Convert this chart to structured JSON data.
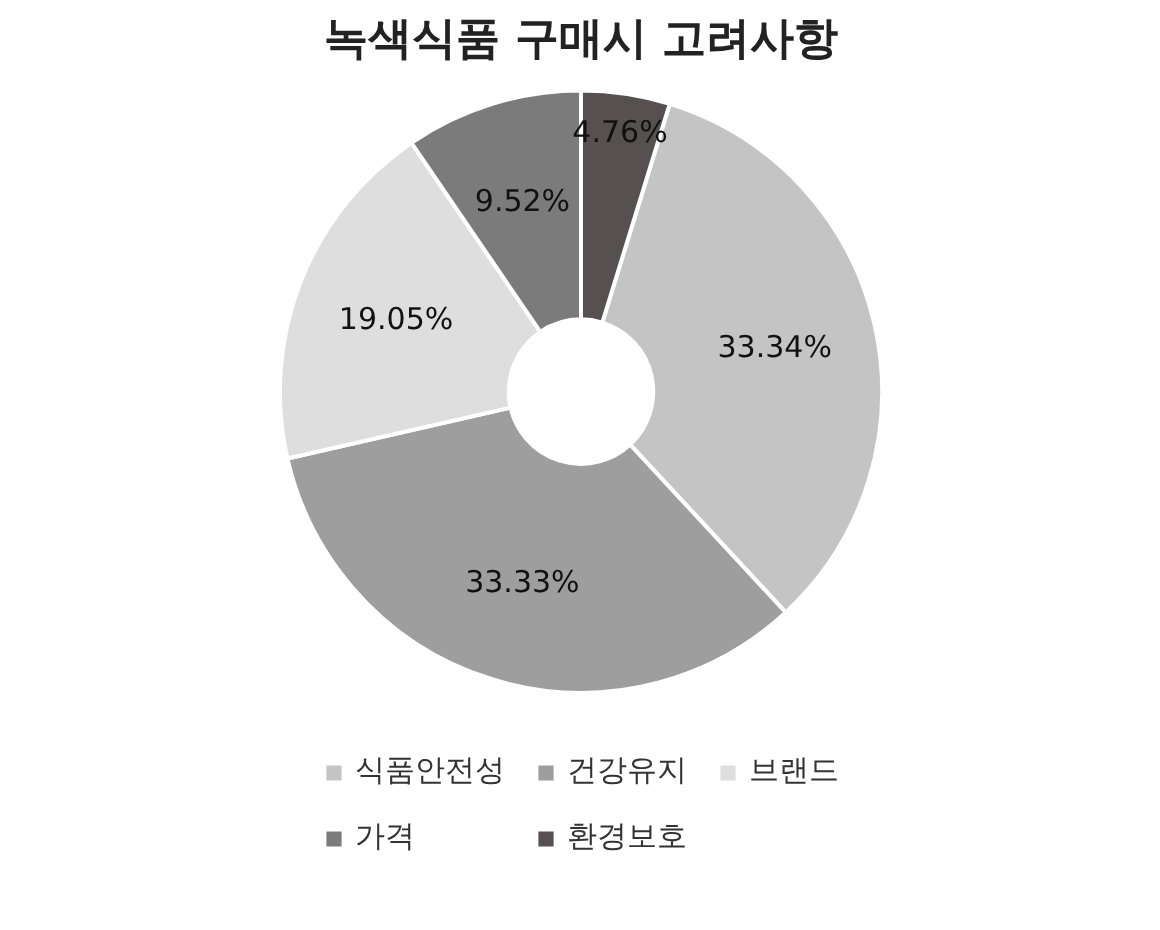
{
  "chart_data": {
    "type": "donut",
    "title": "녹색식품 구매시 고려사항",
    "categories": [
      "식품안전성",
      "건강유지",
      "브랜드",
      "가격",
      "환경보호"
    ],
    "values": [
      33.34,
      33.33,
      19.05,
      9.52,
      4.76
    ],
    "colors": [
      "#c4c4c4",
      "#9e9e9e",
      "#dedede",
      "#7b7b7b",
      "#565050"
    ],
    "value_labels": [
      "33.34%",
      "33.33%",
      "19.05%",
      "9.52%",
      "4.76%"
    ],
    "legend": "bottom"
  }
}
